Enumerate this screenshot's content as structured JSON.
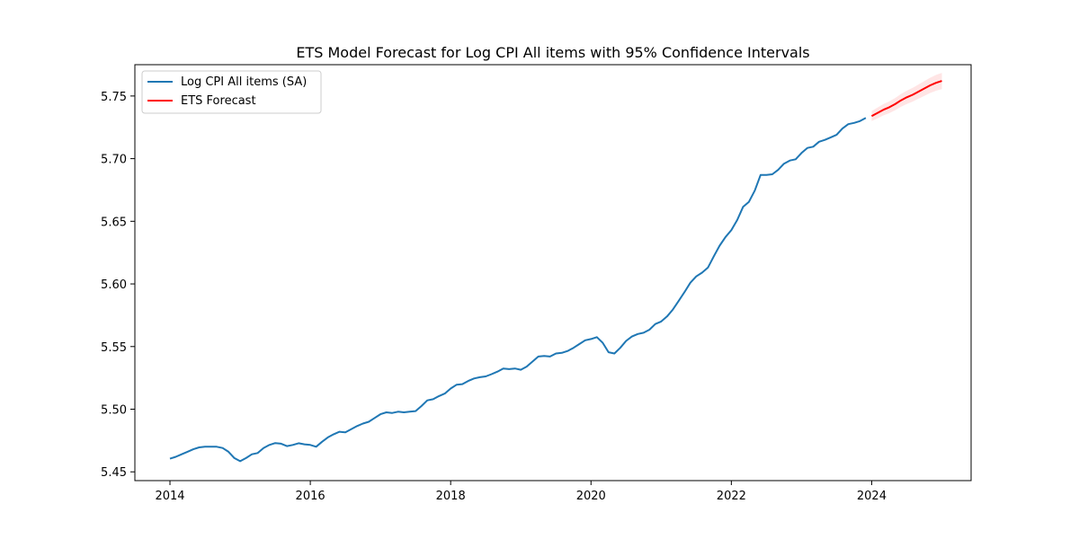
{
  "chart_data": {
    "type": "line",
    "title": "ETS Model Forecast for Log CPI All items with 95% Confidence Intervals",
    "xlabel": "",
    "ylabel": "",
    "xlim": [
      "2013-07",
      "2025-06"
    ],
    "ylim": [
      5.443,
      5.775
    ],
    "x_ticks": [
      "2014",
      "2016",
      "2018",
      "2020",
      "2022",
      "2024"
    ],
    "y_ticks": [
      "5.45",
      "5.50",
      "5.55",
      "5.60",
      "5.65",
      "5.70",
      "5.75"
    ],
    "grid": false,
    "legend_position": "upper-left",
    "series": [
      {
        "name": "Log CPI All items (SA)",
        "color": "#1f77b4",
        "points": [
          [
            "2014-01",
            5.4605
          ],
          [
            "2014-02",
            5.462
          ],
          [
            "2014-03",
            5.464
          ],
          [
            "2014-04",
            5.466
          ],
          [
            "2014-05",
            5.468
          ],
          [
            "2014-06",
            5.4695
          ],
          [
            "2014-07",
            5.47
          ],
          [
            "2014-08",
            5.47
          ],
          [
            "2014-09",
            5.47
          ],
          [
            "2014-10",
            5.469
          ],
          [
            "2014-11",
            5.466
          ],
          [
            "2014-12",
            5.461
          ],
          [
            "2015-01",
            5.4585
          ],
          [
            "2015-02",
            5.461
          ],
          [
            "2015-03",
            5.464
          ],
          [
            "2015-04",
            5.465
          ],
          [
            "2015-05",
            5.469
          ],
          [
            "2015-06",
            5.4715
          ],
          [
            "2015-07",
            5.473
          ],
          [
            "2015-08",
            5.4725
          ],
          [
            "2015-09",
            5.4705
          ],
          [
            "2015-10",
            5.4715
          ],
          [
            "2015-11",
            5.4728
          ],
          [
            "2015-12",
            5.472
          ],
          [
            "2016-01",
            5.4715
          ],
          [
            "2016-02",
            5.47
          ],
          [
            "2016-03",
            5.474
          ],
          [
            "2016-04",
            5.4775
          ],
          [
            "2016-05",
            5.48
          ],
          [
            "2016-06",
            5.482
          ],
          [
            "2016-07",
            5.4815
          ],
          [
            "2016-08",
            5.484
          ],
          [
            "2016-09",
            5.4865
          ],
          [
            "2016-10",
            5.4885
          ],
          [
            "2016-11",
            5.49
          ],
          [
            "2016-12",
            5.493
          ],
          [
            "2017-01",
            5.496
          ],
          [
            "2017-02",
            5.4975
          ],
          [
            "2017-03",
            5.497
          ],
          [
            "2017-04",
            5.498
          ],
          [
            "2017-05",
            5.4975
          ],
          [
            "2017-06",
            5.498
          ],
          [
            "2017-07",
            5.4985
          ],
          [
            "2017-08",
            5.5025
          ],
          [
            "2017-09",
            5.507
          ],
          [
            "2017-10",
            5.508
          ],
          [
            "2017-11",
            5.5105
          ],
          [
            "2017-12",
            5.5125
          ],
          [
            "2018-01",
            5.5165
          ],
          [
            "2018-02",
            5.5195
          ],
          [
            "2018-03",
            5.52
          ],
          [
            "2018-04",
            5.5225
          ],
          [
            "2018-05",
            5.5245
          ],
          [
            "2018-06",
            5.5255
          ],
          [
            "2018-07",
            5.5262
          ],
          [
            "2018-08",
            5.528
          ],
          [
            "2018-09",
            5.53
          ],
          [
            "2018-10",
            5.5325
          ],
          [
            "2018-11",
            5.532
          ],
          [
            "2018-12",
            5.5325
          ],
          [
            "2019-01",
            5.5315
          ],
          [
            "2019-02",
            5.534
          ],
          [
            "2019-03",
            5.538
          ],
          [
            "2019-04",
            5.542
          ],
          [
            "2019-05",
            5.5425
          ],
          [
            "2019-06",
            5.542
          ],
          [
            "2019-07",
            5.5445
          ],
          [
            "2019-08",
            5.545
          ],
          [
            "2019-09",
            5.5465
          ],
          [
            "2019-10",
            5.549
          ],
          [
            "2019-11",
            5.552
          ],
          [
            "2019-12",
            5.555
          ],
          [
            "2020-01",
            5.556
          ],
          [
            "2020-02",
            5.5575
          ],
          [
            "2020-03",
            5.553
          ],
          [
            "2020-04",
            5.5455
          ],
          [
            "2020-05",
            5.5445
          ],
          [
            "2020-06",
            5.549
          ],
          [
            "2020-07",
            5.5545
          ],
          [
            "2020-08",
            5.558
          ],
          [
            "2020-09",
            5.56
          ],
          [
            "2020-10",
            5.561
          ],
          [
            "2020-11",
            5.5635
          ],
          [
            "2020-12",
            5.568
          ],
          [
            "2021-01",
            5.57
          ],
          [
            "2021-02",
            5.574
          ],
          [
            "2021-03",
            5.5795
          ],
          [
            "2021-04",
            5.5865
          ],
          [
            "2021-05",
            5.5935
          ],
          [
            "2021-06",
            5.601
          ],
          [
            "2021-07",
            5.606
          ],
          [
            "2021-08",
            5.609
          ],
          [
            "2021-09",
            5.613
          ],
          [
            "2021-10",
            5.622
          ],
          [
            "2021-11",
            5.6305
          ],
          [
            "2021-12",
            5.6375
          ],
          [
            "2022-01",
            5.643
          ],
          [
            "2022-02",
            5.651
          ],
          [
            "2022-03",
            5.6615
          ],
          [
            "2022-04",
            5.6655
          ],
          [
            "2022-05",
            5.6745
          ],
          [
            "2022-06",
            5.687
          ],
          [
            "2022-07",
            5.687
          ],
          [
            "2022-08",
            5.6875
          ],
          [
            "2022-09",
            5.691
          ],
          [
            "2022-10",
            5.696
          ],
          [
            "2022-11",
            5.6985
          ],
          [
            "2022-12",
            5.6995
          ],
          [
            "2023-01",
            5.7045
          ],
          [
            "2023-02",
            5.7085
          ],
          [
            "2023-03",
            5.7095
          ],
          [
            "2023-04",
            5.7135
          ],
          [
            "2023-05",
            5.715
          ],
          [
            "2023-06",
            5.717
          ],
          [
            "2023-07",
            5.719
          ],
          [
            "2023-08",
            5.724
          ],
          [
            "2023-09",
            5.7275
          ],
          [
            "2023-10",
            5.7285
          ],
          [
            "2023-11",
            5.73
          ],
          [
            "2023-12",
            5.7325
          ]
        ]
      },
      {
        "name": "ETS Forecast",
        "color": "#ff0000",
        "points": [
          [
            "2024-01",
            5.734
          ],
          [
            "2024-02",
            5.7365
          ],
          [
            "2024-03",
            5.739
          ],
          [
            "2024-04",
            5.741
          ],
          [
            "2024-05",
            5.7435
          ],
          [
            "2024-06",
            5.7465
          ],
          [
            "2024-07",
            5.749
          ],
          [
            "2024-08",
            5.751
          ],
          [
            "2024-09",
            5.7535
          ],
          [
            "2024-10",
            5.756
          ],
          [
            "2024-11",
            5.7585
          ],
          [
            "2024-12",
            5.7605
          ],
          [
            "2025-01",
            5.762
          ]
        ],
        "ci_color": "#ff0000",
        "ci_lower": [
          5.73,
          5.7322,
          5.7345,
          5.7363,
          5.7386,
          5.7414,
          5.7437,
          5.7455,
          5.7478,
          5.7501,
          5.7524,
          5.7542,
          5.7555
        ],
        "ci_upper": [
          5.738,
          5.7408,
          5.7435,
          5.7457,
          5.7484,
          5.7516,
          5.7543,
          5.7565,
          5.7592,
          5.7619,
          5.7646,
          5.7668,
          5.7685
        ]
      }
    ]
  }
}
